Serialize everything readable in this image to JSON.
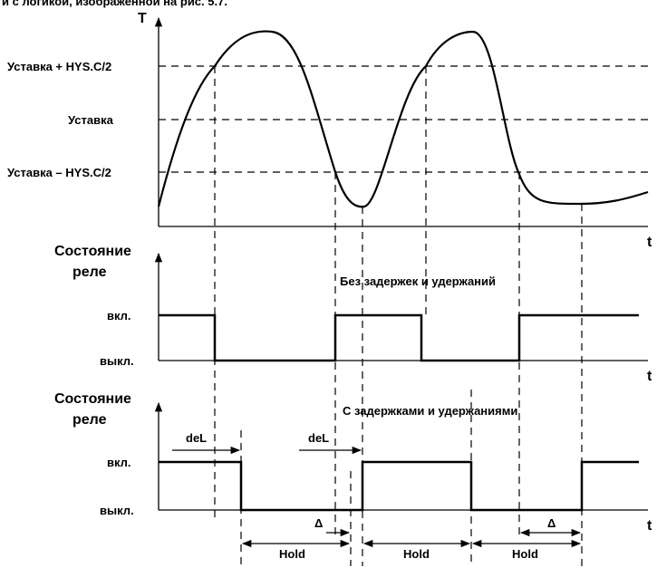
{
  "header": {
    "text": "и с логикой, изображенной на",
    "bold": "рис. 5.7."
  },
  "plot": {
    "axis_y": "T",
    "axis_x": "t",
    "levels": [
      "Уставка + HYS.C/2",
      "Уставка",
      "Уставка – HYS.C/2"
    ]
  },
  "relay1": {
    "title1": "Состояние",
    "title2": "реле",
    "caption": "Без задержек и удержаний",
    "on": "вкл.",
    "off": "выкл.",
    "axis_x": "t"
  },
  "relay2": {
    "title1": "Состояние",
    "title2": "реле",
    "caption": "С задержками и удержаниями",
    "on": "вкл.",
    "off": "выкл.",
    "axis_x": "t",
    "del": [
      "deL",
      "deL"
    ],
    "delta": [
      "Δ",
      "Δ"
    ],
    "hold": [
      "Hold",
      "Hold",
      "Hold"
    ]
  }
}
